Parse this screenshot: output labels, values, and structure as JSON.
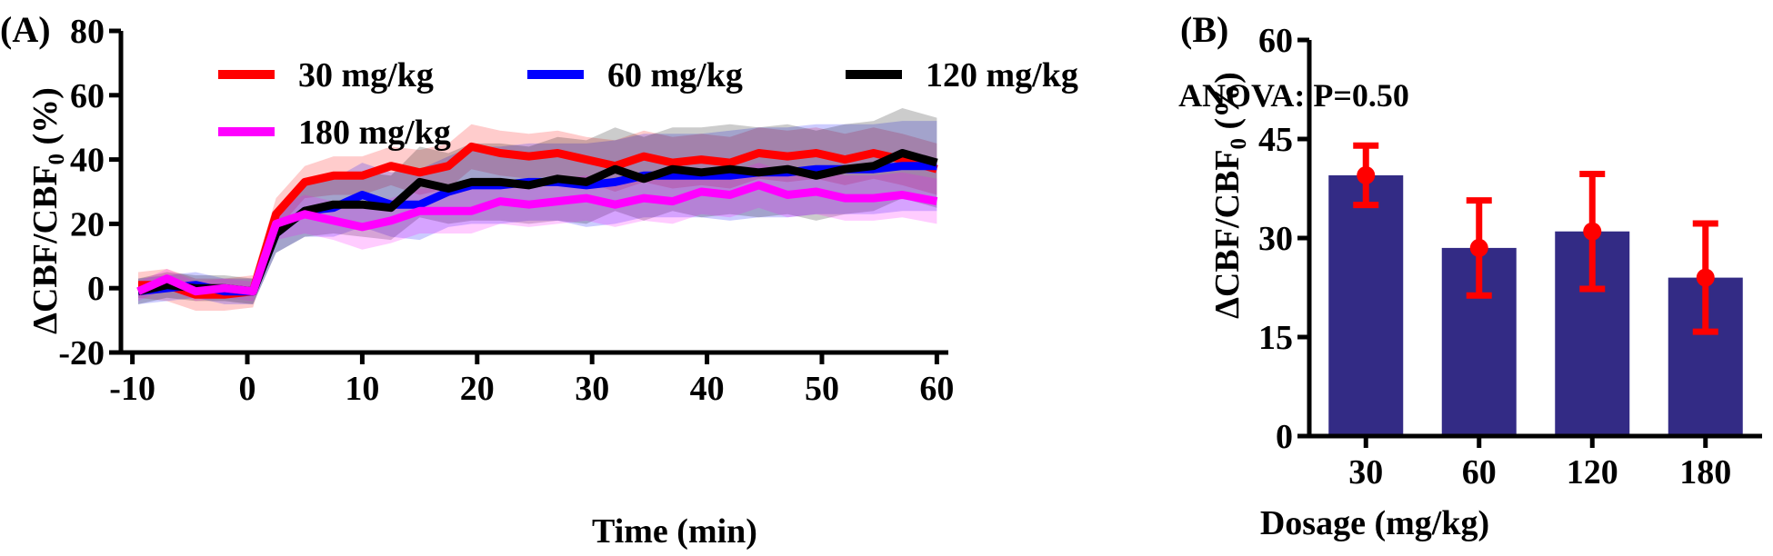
{
  "chart_data": [
    {
      "type": "line",
      "panel_label": "(A)",
      "xlabel": "Time (min)",
      "ylabel_main": "ΔCBF/CBF",
      "ylabel_subscript": "0",
      "ylabel_suffix": " (%)",
      "xlim": [
        -11,
        61
      ],
      "ylim": [
        -20,
        80
      ],
      "xticks": [
        -10,
        0,
        10,
        20,
        30,
        40,
        50,
        60
      ],
      "yticks": [
        -20,
        0,
        20,
        40,
        60,
        80
      ],
      "x": [
        -9.5,
        -7,
        -4.5,
        -2,
        0.5,
        2.5,
        5,
        7.5,
        10,
        12.5,
        15,
        17.5,
        19.5,
        22,
        24.5,
        27,
        29.5,
        32,
        34.5,
        37,
        39.5,
        42,
        44.5,
        47,
        49.5,
        52,
        54.5,
        57,
        60
      ],
      "series": [
        {
          "name": "30 mg/kg",
          "color": "#ff0000",
          "values": [
            1,
            1,
            -2,
            -2,
            -1,
            23,
            33,
            35,
            35,
            38,
            36,
            38,
            44,
            42,
            41,
            42,
            40,
            38,
            41,
            39,
            40,
            39,
            42,
            41,
            42,
            40,
            42,
            40,
            37
          ],
          "band": [
            4,
            5,
            5,
            5,
            5,
            5,
            5,
            6,
            6,
            6,
            7,
            7,
            7,
            7,
            7,
            7,
            7,
            8,
            8,
            8,
            8,
            8,
            8,
            8,
            8,
            8,
            8,
            8,
            8
          ]
        },
        {
          "name": "60 mg/kg",
          "color": "#0000ff",
          "values": [
            -1,
            0,
            1,
            -1,
            -1,
            17,
            24,
            25,
            29,
            26,
            26,
            30,
            32,
            32,
            33,
            33,
            32,
            33,
            35,
            35,
            35,
            35,
            36,
            36,
            37,
            37,
            37,
            38,
            38
          ],
          "band": [
            4,
            4,
            4,
            4,
            4,
            6,
            8,
            9,
            10,
            10,
            11,
            11,
            12,
            12,
            12,
            12,
            13,
            13,
            13,
            13,
            13,
            14,
            14,
            14,
            14,
            14,
            14,
            14,
            14
          ]
        },
        {
          "name": "120 mg/kg",
          "color": "#000000",
          "values": [
            -1,
            1,
            0,
            0,
            -1,
            17,
            24,
            26,
            26,
            25,
            33,
            31,
            33,
            33,
            32,
            34,
            33,
            37,
            34,
            37,
            36,
            37,
            36,
            37,
            35,
            37,
            38,
            42,
            39
          ],
          "band": [
            4,
            4,
            4,
            4,
            4,
            6,
            8,
            9,
            10,
            10,
            11,
            11,
            12,
            12,
            12,
            13,
            13,
            13,
            13,
            13,
            14,
            14,
            14,
            14,
            14,
            14,
            14,
            14,
            14
          ]
        },
        {
          "name": "180 mg/kg",
          "color": "#ff00ff",
          "values": [
            -1,
            3,
            -1,
            0,
            -1,
            20,
            23,
            21,
            19,
            21,
            24,
            24,
            24,
            27,
            26,
            27,
            28,
            26,
            28,
            27,
            30,
            29,
            32,
            29,
            30,
            28,
            28,
            29,
            27
          ],
          "band": [
            3,
            3,
            3,
            3,
            3,
            5,
            6,
            6,
            7,
            7,
            7,
            7,
            7,
            7,
            7,
            7,
            7,
            7,
            7,
            7,
            7,
            7,
            7,
            7,
            7,
            7,
            7,
            7,
            7
          ]
        }
      ],
      "legend": [
        "30 mg/kg",
        "60 mg/kg",
        "120 mg/kg",
        "180 mg/kg"
      ]
    },
    {
      "type": "bar",
      "panel_label": "(B)",
      "annotation": "ANOVA: P=0.50",
      "xlabel": "Dosage (mg/kg)",
      "ylabel_main": "ΔCBF/CBF",
      "ylabel_subscript": "0",
      "ylabel_suffix": " (%)",
      "ylim": [
        0,
        60
      ],
      "yticks": [
        0,
        15,
        30,
        45,
        60
      ],
      "categories": [
        "30",
        "60",
        "120",
        "180"
      ],
      "values": [
        39.5,
        28.5,
        31,
        24
      ],
      "means": [
        39.5,
        28.5,
        31,
        24
      ],
      "errors": [
        4.5,
        7.2,
        8.7,
        8.2
      ],
      "bar_color": "#332b85",
      "error_color": "#ff0000"
    }
  ]
}
